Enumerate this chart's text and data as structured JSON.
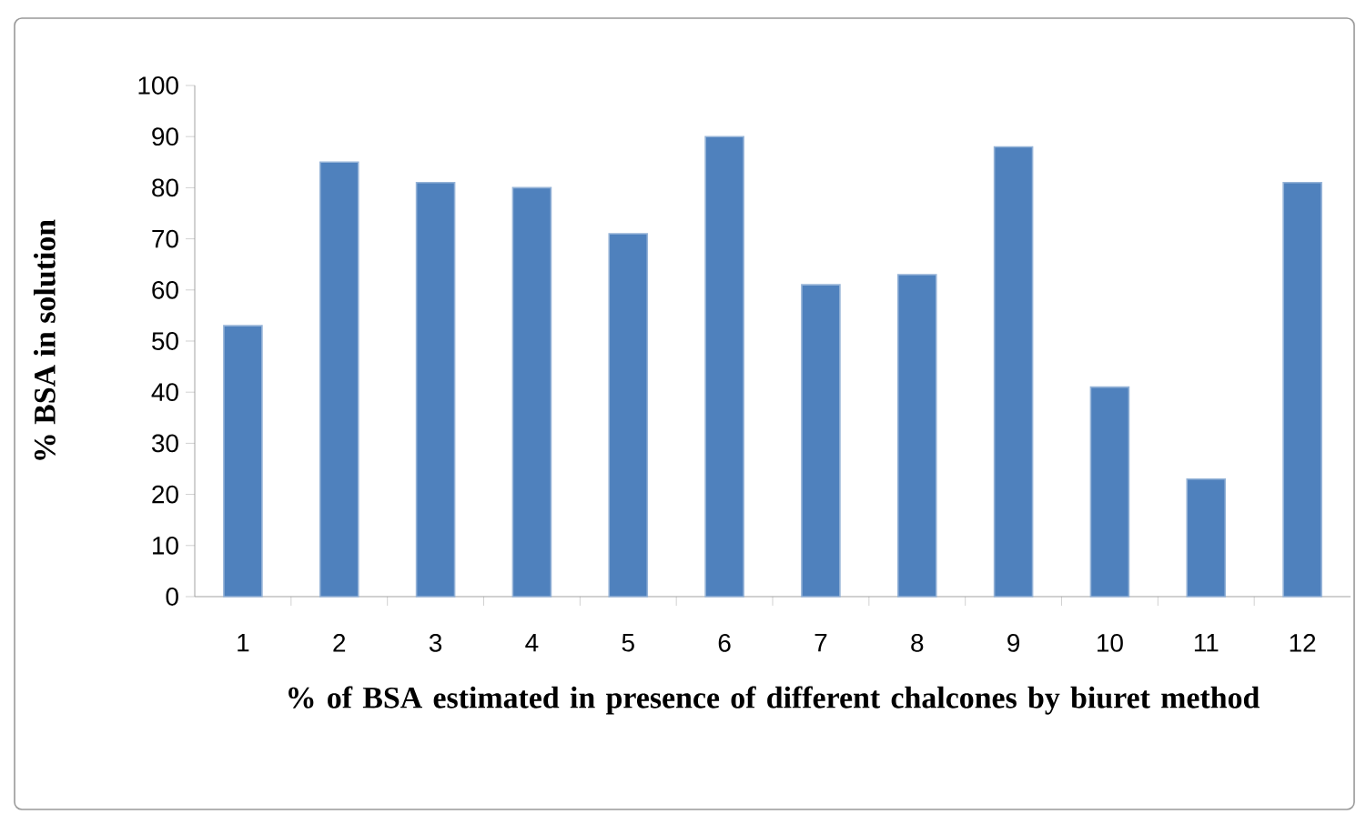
{
  "chart_data": {
    "type": "bar",
    "categories": [
      "1",
      "2",
      "3",
      "4",
      "5",
      "6",
      "7",
      "8",
      "9",
      "10",
      "11",
      "12"
    ],
    "values": [
      53,
      85,
      81,
      80,
      71,
      90,
      61,
      63,
      88,
      41,
      23,
      81
    ],
    "color": "#4f81bd",
    "ylim": [
      0,
      100
    ],
    "yticks": [
      0,
      10,
      20,
      30,
      40,
      50,
      60,
      70,
      80,
      90,
      100
    ],
    "xlabel": "% of BSA estimated in presence of different chalcones by biuret method",
    "ylabel": "% BSA in solution"
  }
}
